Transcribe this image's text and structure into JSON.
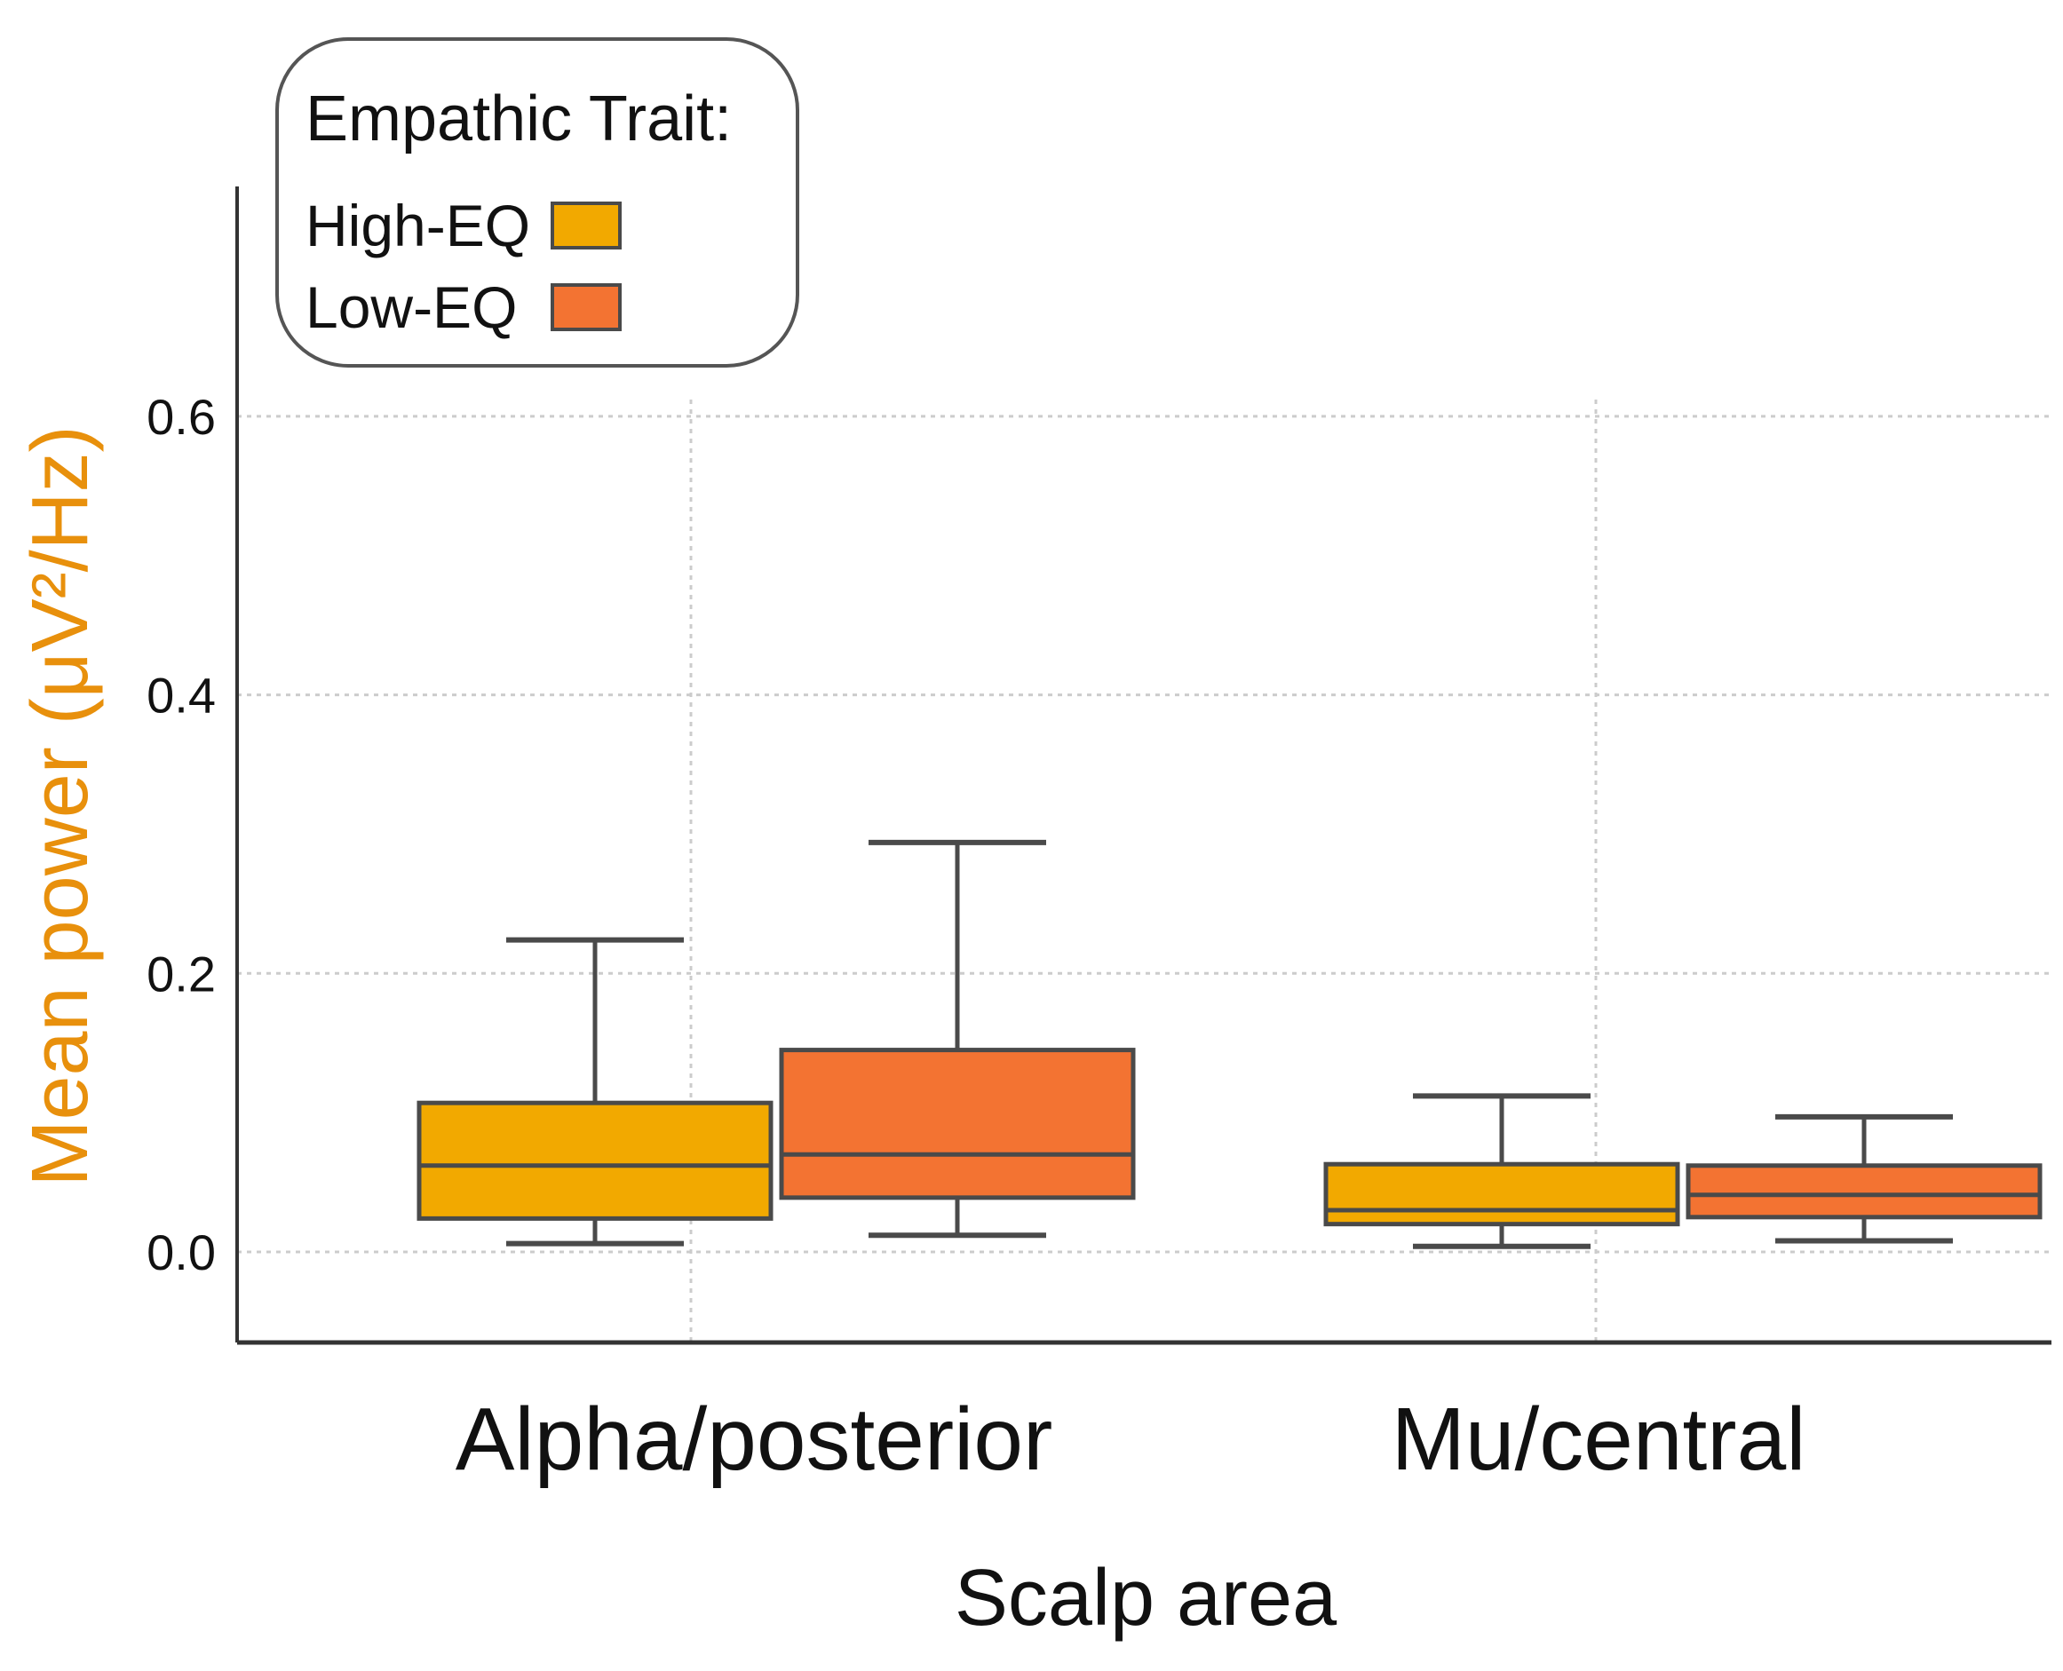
{
  "chart_data": {
    "type": "box",
    "title": "",
    "xlabel": "Scalp area",
    "ylabel": "Mean power (μV²/Hz)",
    "ylabel_color": "#e8900c",
    "ylim": [
      -0.065,
      0.765
    ],
    "yticks": [
      0.0,
      0.2,
      0.4,
      0.6
    ],
    "ytick_labels": [
      "0.0",
      "0.2",
      "0.4",
      "0.6"
    ],
    "grid": true,
    "categories": [
      "Alpha/posterior",
      "Mu/central"
    ],
    "legend": {
      "title": "Empathic Trait:",
      "placement": "top-left"
    },
    "series": [
      {
        "name": "High-EQ",
        "color": "#f2a900",
        "boxes": [
          {
            "category": "Alpha/posterior",
            "whisker_low": 0.006,
            "q1": 0.024,
            "median": 0.062,
            "q3": 0.107,
            "whisker_high": 0.224
          },
          {
            "category": "Mu/central",
            "whisker_low": 0.004,
            "q1": 0.02,
            "median": 0.03,
            "q3": 0.063,
            "whisker_high": 0.112
          }
        ]
      },
      {
        "name": "Low-EQ",
        "color": "#f37332",
        "boxes": [
          {
            "category": "Alpha/posterior",
            "whisker_low": 0.012,
            "q1": 0.039,
            "median": 0.07,
            "q3": 0.145,
            "whisker_high": 0.294
          },
          {
            "category": "Mu/central",
            "whisker_low": 0.008,
            "q1": 0.025,
            "median": 0.041,
            "q3": 0.062,
            "whisker_high": 0.097
          }
        ]
      }
    ],
    "colors": {
      "edge": "#4a4a4a",
      "grid": "#cccccc",
      "axis": "#333333"
    }
  }
}
